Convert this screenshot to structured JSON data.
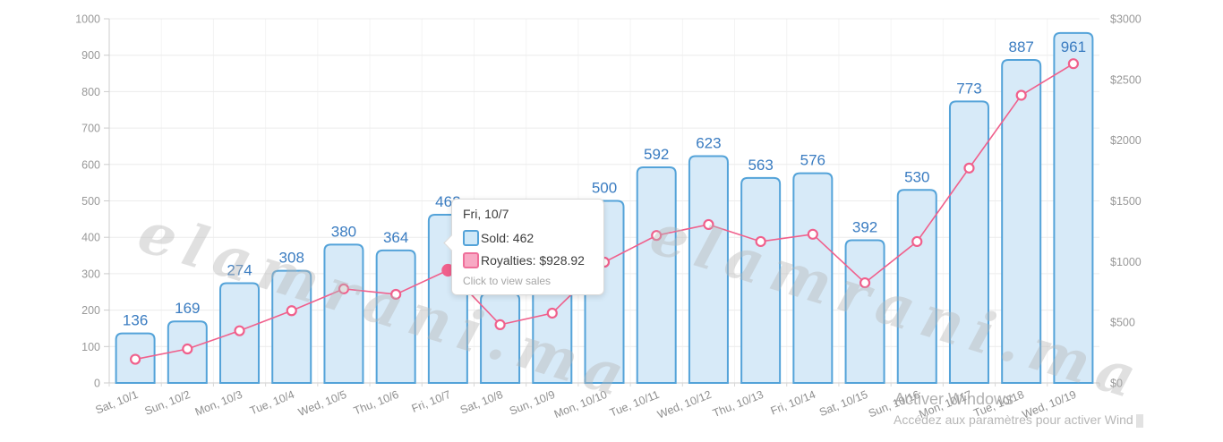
{
  "chart_data": {
    "type": "bar+line",
    "title": "",
    "categories": [
      "Sat, 10/1",
      "Sun, 10/2",
      "Mon, 10/3",
      "Tue, 10/4",
      "Wed, 10/5",
      "Thu, 10/6",
      "Fri, 10/7",
      "Sat, 10/8",
      "Sun, 10/9",
      "Mon, 10/10",
      "Tue, 10/11",
      "Wed, 10/12",
      "Thu, 10/13",
      "Fri, 10/14",
      "Sat, 10/15",
      "Sun, 10/16",
      "Mon, 10/17",
      "Tue, 10/18",
      "Wed, 10/19"
    ],
    "series": [
      {
        "name": "Sold",
        "type": "bar",
        "yaxis": "left",
        "fill": "#d7eaf8",
        "border": "#54a3d9",
        "swatch_fill": "#cfe8f8",
        "values": [
          136,
          169,
          274,
          308,
          380,
          364,
          462,
          245,
          257,
          500,
          592,
          623,
          563,
          576,
          392,
          530,
          773,
          887,
          961
        ],
        "labels_hidden_by_tooltip": [
          7,
          8
        ]
      },
      {
        "name": "Royalties",
        "type": "line",
        "yaxis": "right",
        "color": "#f0608c",
        "swatch_fill": "#f8a9c4",
        "swatch_border": "#ef6f9a",
        "values": [
          195,
          280,
          430,
          595,
          775,
          730,
          928.92,
          480,
          575,
          995,
          1215,
          1305,
          1165,
          1225,
          825,
          1165,
          1770,
          2370,
          2630
        ]
      }
    ],
    "yaxis_left": {
      "min": 0,
      "max": 1000,
      "step": 100,
      "tick_labels": [
        "0",
        "100",
        "200",
        "300",
        "400",
        "500",
        "600",
        "700",
        "800",
        "900",
        "1000"
      ]
    },
    "yaxis_right": {
      "min": 0,
      "max": 3000,
      "step": 500,
      "tick_labels": [
        "$0",
        "$500",
        "$1000",
        "$1500",
        "$2000",
        "$2500",
        "$3000"
      ]
    },
    "grid": true,
    "legend": "none",
    "value_label_color": "#3a7cc1",
    "axis_label_color": "#989898",
    "hovered_point_index": 6
  },
  "tooltip": {
    "title": "Fri, 10/7",
    "sold": "Sold: 462",
    "royalties": "Royalties: $928.92",
    "hint": "Click to view sales"
  },
  "watermark": {
    "text": "elamrani.ma"
  },
  "activation": {
    "line1": "Activer Windows",
    "line2": "Accédez aux paramètres pour activer Wind"
  }
}
